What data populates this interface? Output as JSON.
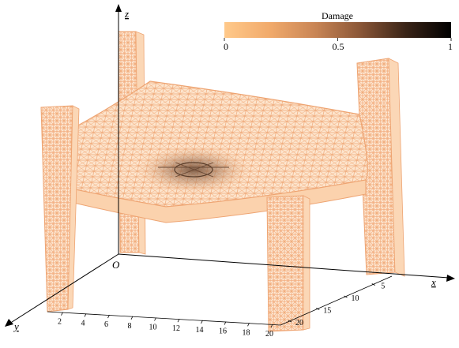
{
  "colorbar": {
    "title": "Damage",
    "ticks": [
      "0",
      "0.5",
      "1"
    ],
    "gradient": [
      "#ffc98a",
      "#f1aa6b",
      "#c98555",
      "#8a5637",
      "#3a2417",
      "#000000"
    ]
  },
  "axes": {
    "x_label": "x",
    "y_label": "y",
    "z_label": "z",
    "origin_label": "O",
    "y_ticks": [
      "2",
      "4",
      "6",
      "8",
      "10",
      "12",
      "14",
      "16",
      "18",
      "20"
    ],
    "x_ticks": [
      "5",
      "10",
      "15",
      "20"
    ]
  },
  "colors": {
    "mesh": "#f6b887",
    "mesh_fill": "#fde3cc",
    "damage_dark": "#5a3d2a"
  }
}
